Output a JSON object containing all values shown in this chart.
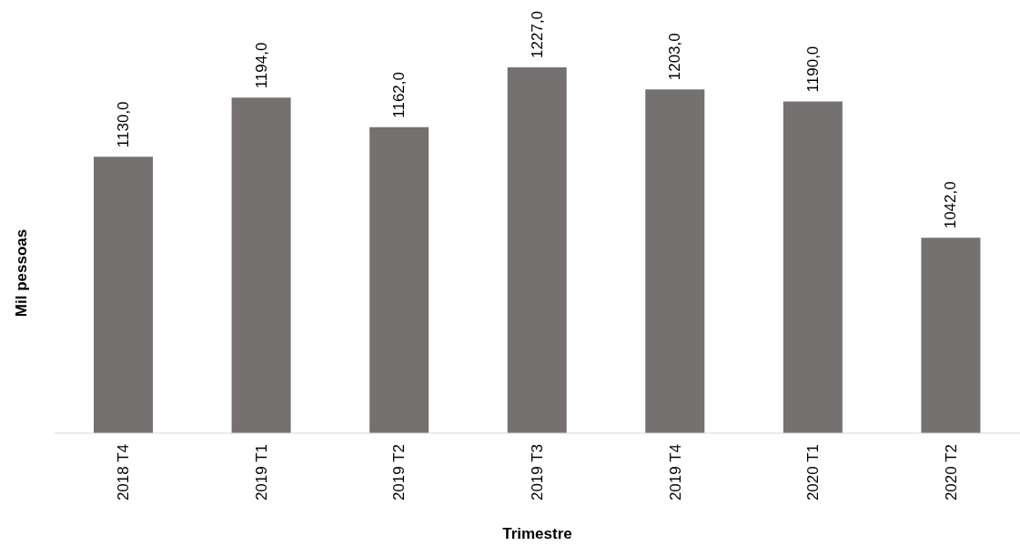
{
  "chart_data": {
    "type": "bar",
    "xlabel": "Trimestre",
    "ylabel": "Mil pessoas",
    "categories": [
      "2018 T4",
      "2019 T1",
      "2019 T2",
      "2019 T3",
      "2019 T4",
      "2020 T1",
      "2020 T2"
    ],
    "values": [
      1130,
      1194,
      1162,
      1227,
      1203,
      1190,
      1042
    ],
    "value_labels": [
      "1130,0",
      "1194,0",
      "1162,0",
      "1227,0",
      "1203,0",
      "1190,0",
      "1042,0"
    ],
    "color": "#767171",
    "ylim": [
      830,
      1300
    ],
    "tick_labels": "x",
    "grid": false
  }
}
